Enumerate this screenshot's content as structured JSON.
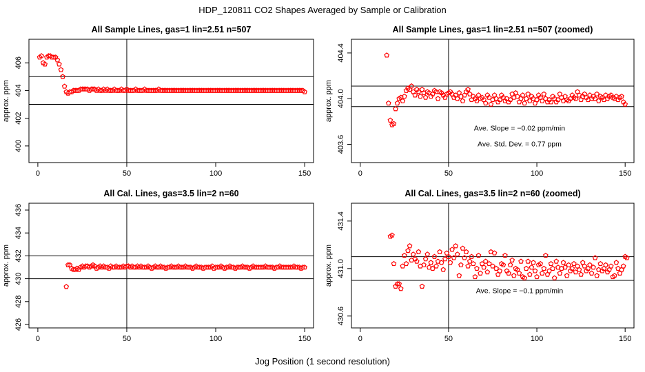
{
  "figure": {
    "title": "HDP_120811  CO2 Shapes Averaged by Sample or Calibration",
    "xlabel": "Jog Position (1 second resolution)"
  },
  "colors": {
    "points": "#ff0000",
    "axes": "#000000",
    "background": "#ffffff"
  },
  "chart_data": [
    {
      "type": "scatter",
      "title": "All Sample Lines, gas=1 lin=2.51 n=507",
      "xlabel": "",
      "ylabel": "approx. ppm",
      "xlim": [
        -5,
        155
      ],
      "ylim": [
        398.8,
        407.7
      ],
      "xticks": [
        0,
        50,
        100,
        150
      ],
      "yticks": [
        400,
        402,
        404,
        406
      ],
      "grid": false,
      "refline_x": 50,
      "refline_y": [
        403,
        405
      ],
      "annotations": [],
      "series": [
        {
          "x_start": 1,
          "values": [
            406.4,
            406.5,
            406.0,
            405.9,
            406.4,
            406.5,
            406.5,
            406.4,
            406.4,
            406.4,
            406.2,
            405.9,
            405.5,
            405.0,
            404.3,
            403.9,
            403.8,
            403.9,
            403.9,
            404.0,
            404.0,
            404.0,
            404.0,
            404.1,
            404.1,
            404.1,
            404.1,
            404.1,
            404.0,
            404.1,
            404.1,
            404.1,
            404.0,
            404.1,
            404.0,
            404.0,
            404.1,
            404.0,
            404.1,
            404.0,
            404.0,
            404.0,
            404.1,
            404.0,
            404.0,
            404.0,
            404.1,
            404.0,
            404.0,
            404.1,
            404.0,
            404.0,
            404.0,
            404.0,
            404.1,
            404.0,
            404.0,
            404.0,
            404.0,
            404.1,
            404.0,
            404.0,
            404.0,
            404.0,
            404.0,
            404.0,
            404.0,
            404.1,
            404.0,
            404.0,
            404.0,
            404.0,
            404.0,
            404.0,
            404.0,
            404.0,
            404.0,
            404.0,
            404.0,
            404.0,
            404.0,
            404.0,
            404.0,
            404.0,
            404.0,
            404.0,
            404.0,
            404.0,
            404.0,
            404.0,
            404.0,
            404.0,
            404.0,
            404.0,
            404.0,
            404.0,
            404.0,
            404.0,
            404.0,
            404.0,
            404.0,
            404.0,
            404.0,
            404.0,
            404.0,
            404.0,
            404.0,
            404.0,
            404.0,
            404.0,
            404.0,
            404.0,
            404.0,
            404.0,
            404.0,
            404.0,
            404.0,
            404.0,
            404.0,
            404.0,
            404.0,
            404.0,
            404.0,
            404.0,
            404.0,
            404.0,
            404.0,
            404.0,
            404.0,
            404.0,
            404.0,
            404.0,
            404.0,
            404.0,
            404.0,
            404.0,
            404.0,
            404.0,
            404.0,
            404.0,
            404.0,
            404.0,
            404.0,
            404.0,
            404.0,
            404.0,
            404.0,
            404.0,
            404.0,
            403.9
          ]
        }
      ]
    },
    {
      "type": "scatter",
      "title": "All Sample Lines, gas=1 lin=2.51 n=507 (zoomed)",
      "xlabel": "",
      "ylabel": "approx. ppm",
      "xlim": [
        -5,
        155
      ],
      "ylim": [
        403.44,
        404.52
      ],
      "xticks": [
        0,
        50,
        100,
        150
      ],
      "yticks": [
        403.6,
        404.0,
        404.4
      ],
      "ytick_labels": [
        "403.6",
        "404.0",
        "404.4"
      ],
      "grid": false,
      "refline_x": 50,
      "refline_y": [
        403.93,
        404.11
      ],
      "annotations": [
        "Ave. Slope =  −0.02  ppm/min",
        "Ave. Std. Dev. =  0.77  ppm"
      ],
      "series": [
        {
          "x_start": 15,
          "values": [
            404.38,
            403.96,
            403.81,
            403.77,
            403.78,
            403.91,
            403.96,
            404.0,
            404.01,
            403.98,
            404.02,
            404.07,
            404.09,
            404.08,
            404.11,
            404.06,
            404.03,
            404.08,
            404.06,
            404.02,
            404.08,
            404.05,
            404.01,
            404.06,
            404.05,
            404.02,
            404.04,
            404.07,
            404.06,
            404.0,
            404.06,
            404.05,
            404.03,
            404.01,
            404.04,
            404.05,
            404.06,
            404.04,
            404.01,
            404.03,
            404.0,
            404.05,
            404.02,
            403.98,
            404.03,
            404.06,
            404.08,
            404.04,
            403.99,
            404.02,
            404.0,
            403.98,
            404.03,
            404.0,
            404.01,
            403.99,
            403.96,
            404.03,
            404.01,
            403.95,
            403.99,
            404.03,
            404.0,
            403.97,
            403.99,
            404.03,
            404.01,
            403.98,
            404.0,
            403.97,
            403.99,
            404.04,
            404.01,
            404.05,
            404.02,
            403.97,
            404.0,
            404.03,
            403.96,
            404.0,
            404.04,
            403.98,
            404.02,
            404.0,
            403.96,
            403.99,
            404.03,
            404.01,
            403.98,
            404.04,
            404.0,
            403.97,
            403.99,
            403.97,
            404.02,
            404.0,
            403.97,
            403.99,
            404.04,
            404.01,
            403.98,
            404.02,
            403.99,
            403.98,
            404.0,
            404.03,
            404.01,
            404.0,
            404.06,
            404.03,
            403.99,
            404.02,
            404.04,
            404.01,
            403.99,
            404.03,
            404.0,
            404.02,
            404.0,
            404.04,
            403.98,
            404.02,
            404.01,
            403.99,
            404.03,
            404.0,
            404.02,
            404.03,
            404.01,
            404.0,
            404.02,
            403.99,
            404.01,
            404.02,
            403.97,
            403.95
          ]
        }
      ]
    },
    {
      "type": "scatter",
      "title": "All Cal. Lines, gas=3.5 lin=2 n=60",
      "xlabel": "",
      "ylabel": "approx. ppm",
      "xlim": [
        -5,
        155
      ],
      "ylim": [
        425.7,
        436.6
      ],
      "xticks": [
        0,
        50,
        100,
        150
      ],
      "yticks": [
        426,
        428,
        430,
        432,
        434,
        436
      ],
      "grid": false,
      "refline_x": 50,
      "refline_y": [
        430,
        432
      ],
      "annotations": [],
      "series": [
        {
          "x_start": 16,
          "values": [
            429.3,
            431.2,
            431.2,
            430.9,
            430.8,
            430.8,
            430.9,
            430.8,
            431.0,
            431.1,
            431.0,
            431.1,
            431.1,
            431.0,
            431.1,
            431.2,
            431.1,
            430.9,
            431.0,
            431.1,
            431.0,
            431.1,
            431.0,
            431.0,
            430.9,
            431.1,
            431.0,
            431.0,
            431.1,
            431.0,
            431.0,
            431.0,
            431.1,
            431.0,
            431.1,
            431.1,
            431.0,
            431.1,
            431.0,
            431.0,
            431.1,
            431.0,
            431.1,
            431.0,
            431.0,
            431.0,
            431.1,
            431.0,
            430.9,
            431.0,
            431.1,
            431.0,
            431.0,
            431.1,
            431.0,
            431.0,
            430.9,
            431.0,
            431.0,
            431.1,
            431.0,
            431.0,
            431.0,
            431.1,
            431.0,
            431.0,
            431.0,
            431.1,
            431.0,
            431.0,
            431.0,
            430.9,
            431.0,
            431.1,
            431.0,
            431.0,
            431.0,
            430.9,
            431.0,
            431.0,
            431.0,
            431.0,
            431.1,
            430.9,
            431.0,
            431.0,
            431.0,
            431.1,
            431.0,
            430.9,
            431.0,
            431.0,
            431.1,
            431.0,
            431.0,
            430.9,
            431.0,
            431.0,
            431.0,
            431.1,
            431.0,
            431.0,
            431.0,
            430.9,
            431.0,
            431.1,
            431.0,
            431.0,
            431.0,
            431.0,
            431.0,
            431.0,
            431.1,
            431.0,
            431.0,
            431.0,
            431.0,
            430.9,
            431.0,
            431.0,
            431.1,
            431.0,
            431.0,
            431.0,
            431.0,
            431.0,
            431.0,
            431.0,
            431.1,
            431.0,
            431.0,
            431.0,
            430.9,
            431.0,
            431.0
          ]
        }
      ]
    },
    {
      "type": "scatter",
      "title": "All Cal. Lines, gas=3.5 lin=2 n=60 (zoomed)",
      "xlabel": "",
      "ylabel": "approx. ppm",
      "xlim": [
        -5,
        155
      ],
      "ylim": [
        430.5,
        431.55
      ],
      "xticks": [
        0,
        50,
        100,
        150
      ],
      "yticks": [
        430.6,
        431.0,
        431.4
      ],
      "ytick_labels": [
        "430.6",
        "431.0",
        "431.4"
      ],
      "grid": false,
      "refline_x": 50,
      "refline_y": [
        430.9,
        431.1
      ],
      "annotations": [
        "Ave. Slope =  −0.1  ppm/min"
      ],
      "series": [
        {
          "x_start": 17,
          "values": [
            431.27,
            431.28,
            431.04,
            430.85,
            430.87,
            430.87,
            430.83,
            431.02,
            431.11,
            431.04,
            431.15,
            431.19,
            431.07,
            431.12,
            431.08,
            431.06,
            431.14,
            431.02,
            430.85,
            431.03,
            431.08,
            431.12,
            431.01,
            431.05,
            431.0,
            431.1,
            431.02,
            431.06,
            431.14,
            431.05,
            430.99,
            431.08,
            431.13,
            431.1,
            431.05,
            431.16,
            431.09,
            431.19,
            431.12,
            430.94,
            431.03,
            431.17,
            431.09,
            431.14,
            431.02,
            431.06,
            431.1,
            431.04,
            430.93,
            431.0,
            431.11,
            430.96,
            431.04,
            431.01,
            431.06,
            430.97,
            431.04,
            431.14,
            431.02,
            431.13,
            431.0,
            430.95,
            430.98,
            431.04,
            431.03,
            431.11,
            430.98,
            430.96,
            431.03,
            431.07,
            430.94,
            431.0,
            430.99,
            430.96,
            431.06,
            430.93,
            430.92,
            431.0,
            431.06,
            430.95,
            431.01,
            431.05,
            430.98,
            430.93,
            431.03,
            431.04,
            430.96,
            431.0,
            431.11,
            430.95,
            430.98,
            431.04,
            431.0,
            430.92,
            431.06,
            431.01,
            430.96,
            431.0,
            431.05,
            431.01,
            430.94,
            431.03,
            430.98,
            431.0,
            431.04,
            430.97,
            431.02,
            430.99,
            430.95,
            431.05,
            431.02,
            430.98,
            431.0,
            431.03,
            430.96,
            431.01,
            431.09,
            430.94,
            430.99,
            431.04,
            430.98,
            431.0,
            431.03,
            430.97,
            430.99,
            431.02,
            430.93,
            430.94,
            431.05,
            431.0,
            430.96,
            430.99,
            431.02,
            431.1,
            431.09
          ]
        }
      ]
    }
  ]
}
